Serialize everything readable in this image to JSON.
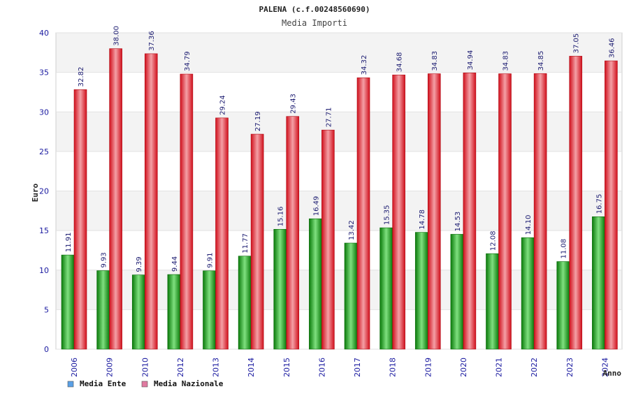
{
  "chart_data": {
    "type": "bar",
    "title": "PALENA (c.f.00248560690)",
    "subtitle": "Media Importi",
    "xlabel": "Anno",
    "ylabel": "Euro",
    "ylim": [
      0,
      40
    ],
    "yticks": [
      0,
      5,
      10,
      15,
      20,
      25,
      30,
      35,
      40
    ],
    "categories": [
      "2006",
      "2009",
      "2010",
      "2012",
      "2013",
      "2014",
      "2015",
      "2016",
      "2017",
      "2018",
      "2019",
      "2020",
      "2021",
      "2022",
      "2023",
      "2024"
    ],
    "series": [
      {
        "name": "Media Ente",
        "color": "#12a812",
        "legend_color": "#5aa0e6",
        "values": [
          11.91,
          9.93,
          9.39,
          9.44,
          9.91,
          11.77,
          15.16,
          16.49,
          13.42,
          15.35,
          14.78,
          14.53,
          12.08,
          14.1,
          11.08,
          16.75
        ],
        "labels": [
          "11.91",
          "9.93",
          "9.39",
          "9.44",
          "9.91",
          "11.77",
          "15.16",
          "16.49",
          "13.42",
          "15.35",
          "14.78",
          "14.53",
          "12.08",
          "14.10",
          "11.08",
          "16.75"
        ]
      },
      {
        "name": "Media Nazionale",
        "color": "#e01a24",
        "legend_color": "#e07aa0",
        "values": [
          32.82,
          38.0,
          37.36,
          34.79,
          29.24,
          27.19,
          29.43,
          27.71,
          34.32,
          34.68,
          34.83,
          34.94,
          34.83,
          34.85,
          37.05,
          36.46
        ],
        "labels": [
          "32.82",
          "38.00",
          "37.36",
          "34.79",
          "29.24",
          "27.19",
          "29.43",
          "27.71",
          "34.32",
          "34.68",
          "34.83",
          "34.94",
          "34.83",
          "34.85",
          "37.05",
          "36.46"
        ]
      }
    ],
    "grid": true,
    "legend_position": "bottom-left"
  }
}
